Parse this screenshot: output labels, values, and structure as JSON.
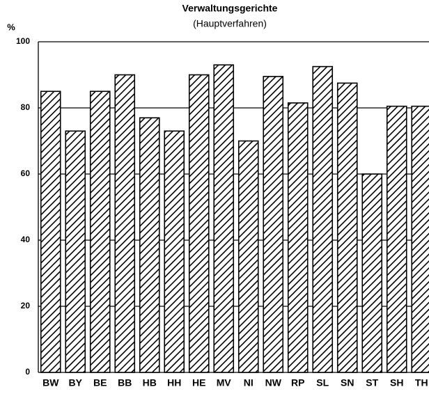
{
  "chart_data": {
    "type": "bar",
    "title": "Verwaltungsgerichte",
    "subtitle": "(Hauptverfahren)",
    "y_label": "%",
    "categories": [
      "BW",
      "BY",
      "BE",
      "BB",
      "HB",
      "HH",
      "HE",
      "MV",
      "NI",
      "NW",
      "RP",
      "SL",
      "SN",
      "ST",
      "SH",
      "TH"
    ],
    "values": [
      85,
      73,
      85,
      90,
      77,
      73,
      90,
      93,
      70,
      89.5,
      81.5,
      92.5,
      87.5,
      60,
      80.5,
      80.5
    ],
    "color": "#000000",
    "ylim": [
      0,
      100
    ],
    "yticks": [
      0,
      20,
      40,
      60,
      80,
      100
    ],
    "grid": true
  }
}
